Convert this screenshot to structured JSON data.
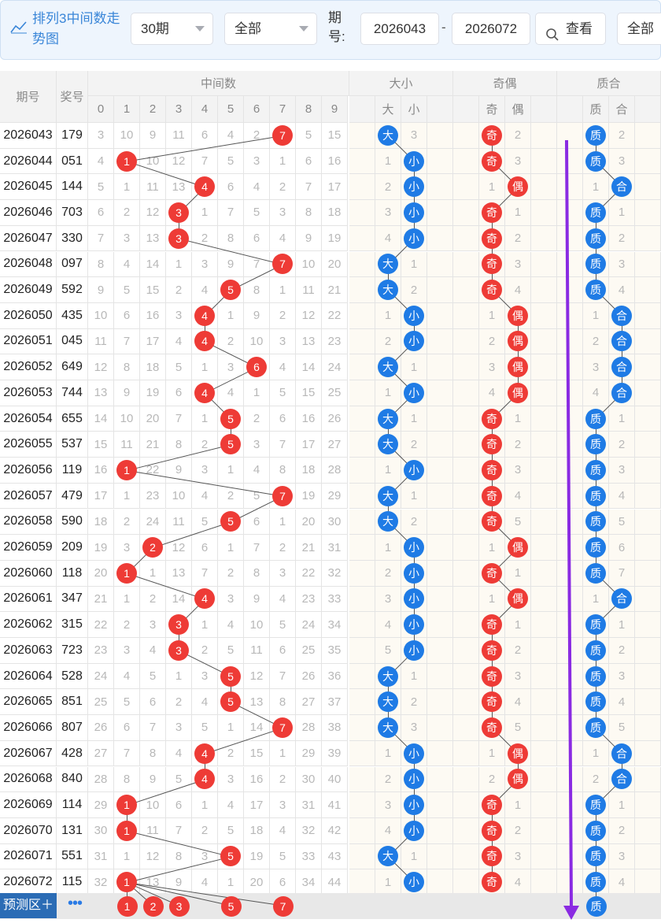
{
  "toolbar": {
    "title": "排列3中间数走势图",
    "period_select": "30期",
    "filter_select": "全部",
    "period_label": "期号:",
    "from_period": "2026043",
    "to_period": "2026072",
    "query_button": "查看",
    "last_select": "全部"
  },
  "headers": {
    "period": "期号",
    "prize": "奖号",
    "middle": "中间数",
    "size": "大小",
    "oddeven": "奇偶",
    "prime": "质合",
    "digits": [
      "0",
      "1",
      "2",
      "3",
      "4",
      "5",
      "6",
      "7",
      "8",
      "9"
    ],
    "size_sub": [
      "大",
      "小"
    ],
    "oe_sub": [
      "奇",
      "偶"
    ],
    "pc_sub": [
      "质",
      "合"
    ]
  },
  "rows": [
    {
      "period": "2026043",
      "prize": "179",
      "mid": [
        3,
        10,
        9,
        11,
        6,
        4,
        2,
        null,
        5,
        15
      ],
      "hit": 7,
      "size": [
        "大",
        "3"
      ],
      "oe": [
        "奇",
        "2"
      ],
      "pc": [
        "质",
        "2"
      ]
    },
    {
      "period": "2026044",
      "prize": "051",
      "mid": [
        4,
        null,
        10,
        12,
        7,
        5,
        3,
        1,
        6,
        16
      ],
      "hit": 1,
      "size": [
        "1",
        "小"
      ],
      "oe": [
        "奇",
        "3"
      ],
      "pc": [
        "质",
        "3"
      ]
    },
    {
      "period": "2026045",
      "prize": "144",
      "mid": [
        5,
        1,
        11,
        13,
        null,
        6,
        4,
        2,
        7,
        17
      ],
      "hit": 4,
      "size": [
        "2",
        "小"
      ],
      "oe": [
        "1",
        "偶"
      ],
      "pc": [
        "1",
        "合"
      ]
    },
    {
      "period": "2026046",
      "prize": "703",
      "mid": [
        6,
        2,
        12,
        null,
        1,
        7,
        5,
        3,
        8,
        18
      ],
      "hit": 3,
      "size": [
        "3",
        "小"
      ],
      "oe": [
        "奇",
        "1"
      ],
      "pc": [
        "质",
        "1"
      ]
    },
    {
      "period": "2026047",
      "prize": "330",
      "mid": [
        7,
        3,
        13,
        null,
        2,
        8,
        6,
        4,
        9,
        19
      ],
      "hit": 3,
      "size": [
        "4",
        "小"
      ],
      "oe": [
        "奇",
        "2"
      ],
      "pc": [
        "质",
        "2"
      ]
    },
    {
      "period": "2026048",
      "prize": "097",
      "mid": [
        8,
        4,
        14,
        1,
        3,
        9,
        7,
        null,
        10,
        20
      ],
      "hit": 7,
      "size": [
        "大",
        "1"
      ],
      "oe": [
        "奇",
        "3"
      ],
      "pc": [
        "质",
        "3"
      ]
    },
    {
      "period": "2026049",
      "prize": "592",
      "mid": [
        9,
        5,
        15,
        2,
        4,
        null,
        8,
        1,
        11,
        21
      ],
      "hit": 5,
      "size": [
        "大",
        "2"
      ],
      "oe": [
        "奇",
        "4"
      ],
      "pc": [
        "质",
        "4"
      ]
    },
    {
      "period": "2026050",
      "prize": "435",
      "mid": [
        10,
        6,
        16,
        3,
        null,
        1,
        9,
        2,
        12,
        22
      ],
      "hit": 4,
      "size": [
        "1",
        "小"
      ],
      "oe": [
        "1",
        "偶"
      ],
      "pc": [
        "1",
        "合"
      ]
    },
    {
      "period": "2026051",
      "prize": "045",
      "mid": [
        11,
        7,
        17,
        4,
        null,
        2,
        10,
        3,
        13,
        23
      ],
      "hit": 4,
      "size": [
        "2",
        "小"
      ],
      "oe": [
        "2",
        "偶"
      ],
      "pc": [
        "2",
        "合"
      ]
    },
    {
      "period": "2026052",
      "prize": "649",
      "mid": [
        12,
        8,
        18,
        5,
        1,
        3,
        null,
        4,
        14,
        24
      ],
      "hit": 6,
      "size": [
        "大",
        "1"
      ],
      "oe": [
        "3",
        "偶"
      ],
      "pc": [
        "3",
        "合"
      ]
    },
    {
      "period": "2026053",
      "prize": "744",
      "mid": [
        13,
        9,
        19,
        6,
        null,
        4,
        1,
        5,
        15,
        25
      ],
      "hit": 4,
      "size": [
        "1",
        "小"
      ],
      "oe": [
        "4",
        "偶"
      ],
      "pc": [
        "4",
        "合"
      ]
    },
    {
      "period": "2026054",
      "prize": "655",
      "mid": [
        14,
        10,
        20,
        7,
        1,
        null,
        2,
        6,
        16,
        26
      ],
      "hit": 5,
      "size": [
        "大",
        "1"
      ],
      "oe": [
        "奇",
        "1"
      ],
      "pc": [
        "质",
        "1"
      ]
    },
    {
      "period": "2026055",
      "prize": "537",
      "mid": [
        15,
        11,
        21,
        8,
        2,
        null,
        3,
        7,
        17,
        27
      ],
      "hit": 5,
      "size": [
        "大",
        "2"
      ],
      "oe": [
        "奇",
        "2"
      ],
      "pc": [
        "质",
        "2"
      ]
    },
    {
      "period": "2026056",
      "prize": "119",
      "mid": [
        16,
        null,
        22,
        9,
        3,
        1,
        4,
        8,
        18,
        28
      ],
      "hit": 1,
      "size": [
        "1",
        "小"
      ],
      "oe": [
        "奇",
        "3"
      ],
      "pc": [
        "质",
        "3"
      ]
    },
    {
      "period": "2026057",
      "prize": "479",
      "mid": [
        17,
        1,
        23,
        10,
        4,
        2,
        5,
        null,
        19,
        29
      ],
      "hit": 7,
      "size": [
        "大",
        "1"
      ],
      "oe": [
        "奇",
        "4"
      ],
      "pc": [
        "质",
        "4"
      ]
    },
    {
      "period": "2026058",
      "prize": "590",
      "mid": [
        18,
        2,
        24,
        11,
        5,
        null,
        6,
        1,
        20,
        30
      ],
      "hit": 5,
      "size": [
        "大",
        "2"
      ],
      "oe": [
        "奇",
        "5"
      ],
      "pc": [
        "质",
        "5"
      ]
    },
    {
      "period": "2026059",
      "prize": "209",
      "mid": [
        19,
        3,
        null,
        12,
        6,
        1,
        7,
        2,
        21,
        31
      ],
      "hit": 2,
      "size": [
        "1",
        "小"
      ],
      "oe": [
        "1",
        "偶"
      ],
      "pc": [
        "质",
        "6"
      ]
    },
    {
      "period": "2026060",
      "prize": "118",
      "mid": [
        20,
        null,
        1,
        13,
        7,
        2,
        8,
        3,
        22,
        32
      ],
      "hit": 1,
      "size": [
        "2",
        "小"
      ],
      "oe": [
        "奇",
        "1"
      ],
      "pc": [
        "质",
        "7"
      ]
    },
    {
      "period": "2026061",
      "prize": "347",
      "mid": [
        21,
        1,
        2,
        14,
        null,
        3,
        9,
        4,
        23,
        33
      ],
      "hit": 4,
      "size": [
        "3",
        "小"
      ],
      "oe": [
        "1",
        "偶"
      ],
      "pc": [
        "1",
        "合"
      ]
    },
    {
      "period": "2026062",
      "prize": "315",
      "mid": [
        22,
        2,
        3,
        null,
        1,
        4,
        10,
        5,
        24,
        34
      ],
      "hit": 3,
      "size": [
        "4",
        "小"
      ],
      "oe": [
        "奇",
        "1"
      ],
      "pc": [
        "质",
        "1"
      ]
    },
    {
      "period": "2026063",
      "prize": "723",
      "mid": [
        23,
        3,
        4,
        null,
        2,
        5,
        11,
        6,
        25,
        35
      ],
      "hit": 3,
      "size": [
        "5",
        "小"
      ],
      "oe": [
        "奇",
        "2"
      ],
      "pc": [
        "质",
        "2"
      ]
    },
    {
      "period": "2026064",
      "prize": "528",
      "mid": [
        24,
        4,
        5,
        1,
        3,
        null,
        12,
        7,
        26,
        36
      ],
      "hit": 5,
      "size": [
        "大",
        "1"
      ],
      "oe": [
        "奇",
        "3"
      ],
      "pc": [
        "质",
        "3"
      ]
    },
    {
      "period": "2026065",
      "prize": "851",
      "mid": [
        25,
        5,
        6,
        2,
        4,
        null,
        13,
        8,
        27,
        37
      ],
      "hit": 5,
      "size": [
        "大",
        "2"
      ],
      "oe": [
        "奇",
        "4"
      ],
      "pc": [
        "质",
        "4"
      ]
    },
    {
      "period": "2026066",
      "prize": "807",
      "mid": [
        26,
        6,
        7,
        3,
        5,
        1,
        14,
        null,
        28,
        38
      ],
      "hit": 7,
      "size": [
        "大",
        "3"
      ],
      "oe": [
        "奇",
        "5"
      ],
      "pc": [
        "质",
        "5"
      ]
    },
    {
      "period": "2026067",
      "prize": "428",
      "mid": [
        27,
        7,
        8,
        4,
        null,
        2,
        15,
        1,
        29,
        39
      ],
      "hit": 4,
      "size": [
        "1",
        "小"
      ],
      "oe": [
        "1",
        "偶"
      ],
      "pc": [
        "1",
        "合"
      ]
    },
    {
      "period": "2026068",
      "prize": "840",
      "mid": [
        28,
        8,
        9,
        5,
        null,
        3,
        16,
        2,
        30,
        40
      ],
      "hit": 4,
      "size": [
        "2",
        "小"
      ],
      "oe": [
        "2",
        "偶"
      ],
      "pc": [
        "2",
        "合"
      ]
    },
    {
      "period": "2026069",
      "prize": "114",
      "mid": [
        29,
        null,
        10,
        6,
        1,
        4,
        17,
        3,
        31,
        41
      ],
      "hit": 1,
      "size": [
        "3",
        "小"
      ],
      "oe": [
        "奇",
        "1"
      ],
      "pc": [
        "质",
        "1"
      ]
    },
    {
      "period": "2026070",
      "prize": "131",
      "mid": [
        30,
        null,
        11,
        7,
        2,
        5,
        18,
        4,
        32,
        42
      ],
      "hit": 1,
      "size": [
        "4",
        "小"
      ],
      "oe": [
        "奇",
        "2"
      ],
      "pc": [
        "质",
        "2"
      ]
    },
    {
      "period": "2026071",
      "prize": "551",
      "mid": [
        31,
        1,
        12,
        8,
        3,
        null,
        19,
        5,
        33,
        43
      ],
      "hit": 5,
      "size": [
        "大",
        "1"
      ],
      "oe": [
        "奇",
        "3"
      ],
      "pc": [
        "质",
        "3"
      ]
    },
    {
      "period": "2026072",
      "prize": "115",
      "mid": [
        32,
        null,
        13,
        9,
        4,
        1,
        20,
        6,
        34,
        44
      ],
      "hit": 1,
      "size": [
        "1",
        "小"
      ],
      "oe": [
        "奇",
        "4"
      ],
      "pc": [
        "质",
        "4"
      ]
    }
  ],
  "prediction": {
    "label": "预测区＋",
    "more": "•••",
    "balls": [
      "1",
      "2",
      "3",
      "5",
      "7"
    ],
    "prime_ball": "质"
  },
  "colors": {
    "red_ball": "#ee3b36",
    "blue_ball": "#1f7be5",
    "arrow": "#8a2be2",
    "link": "#3a86d8"
  }
}
